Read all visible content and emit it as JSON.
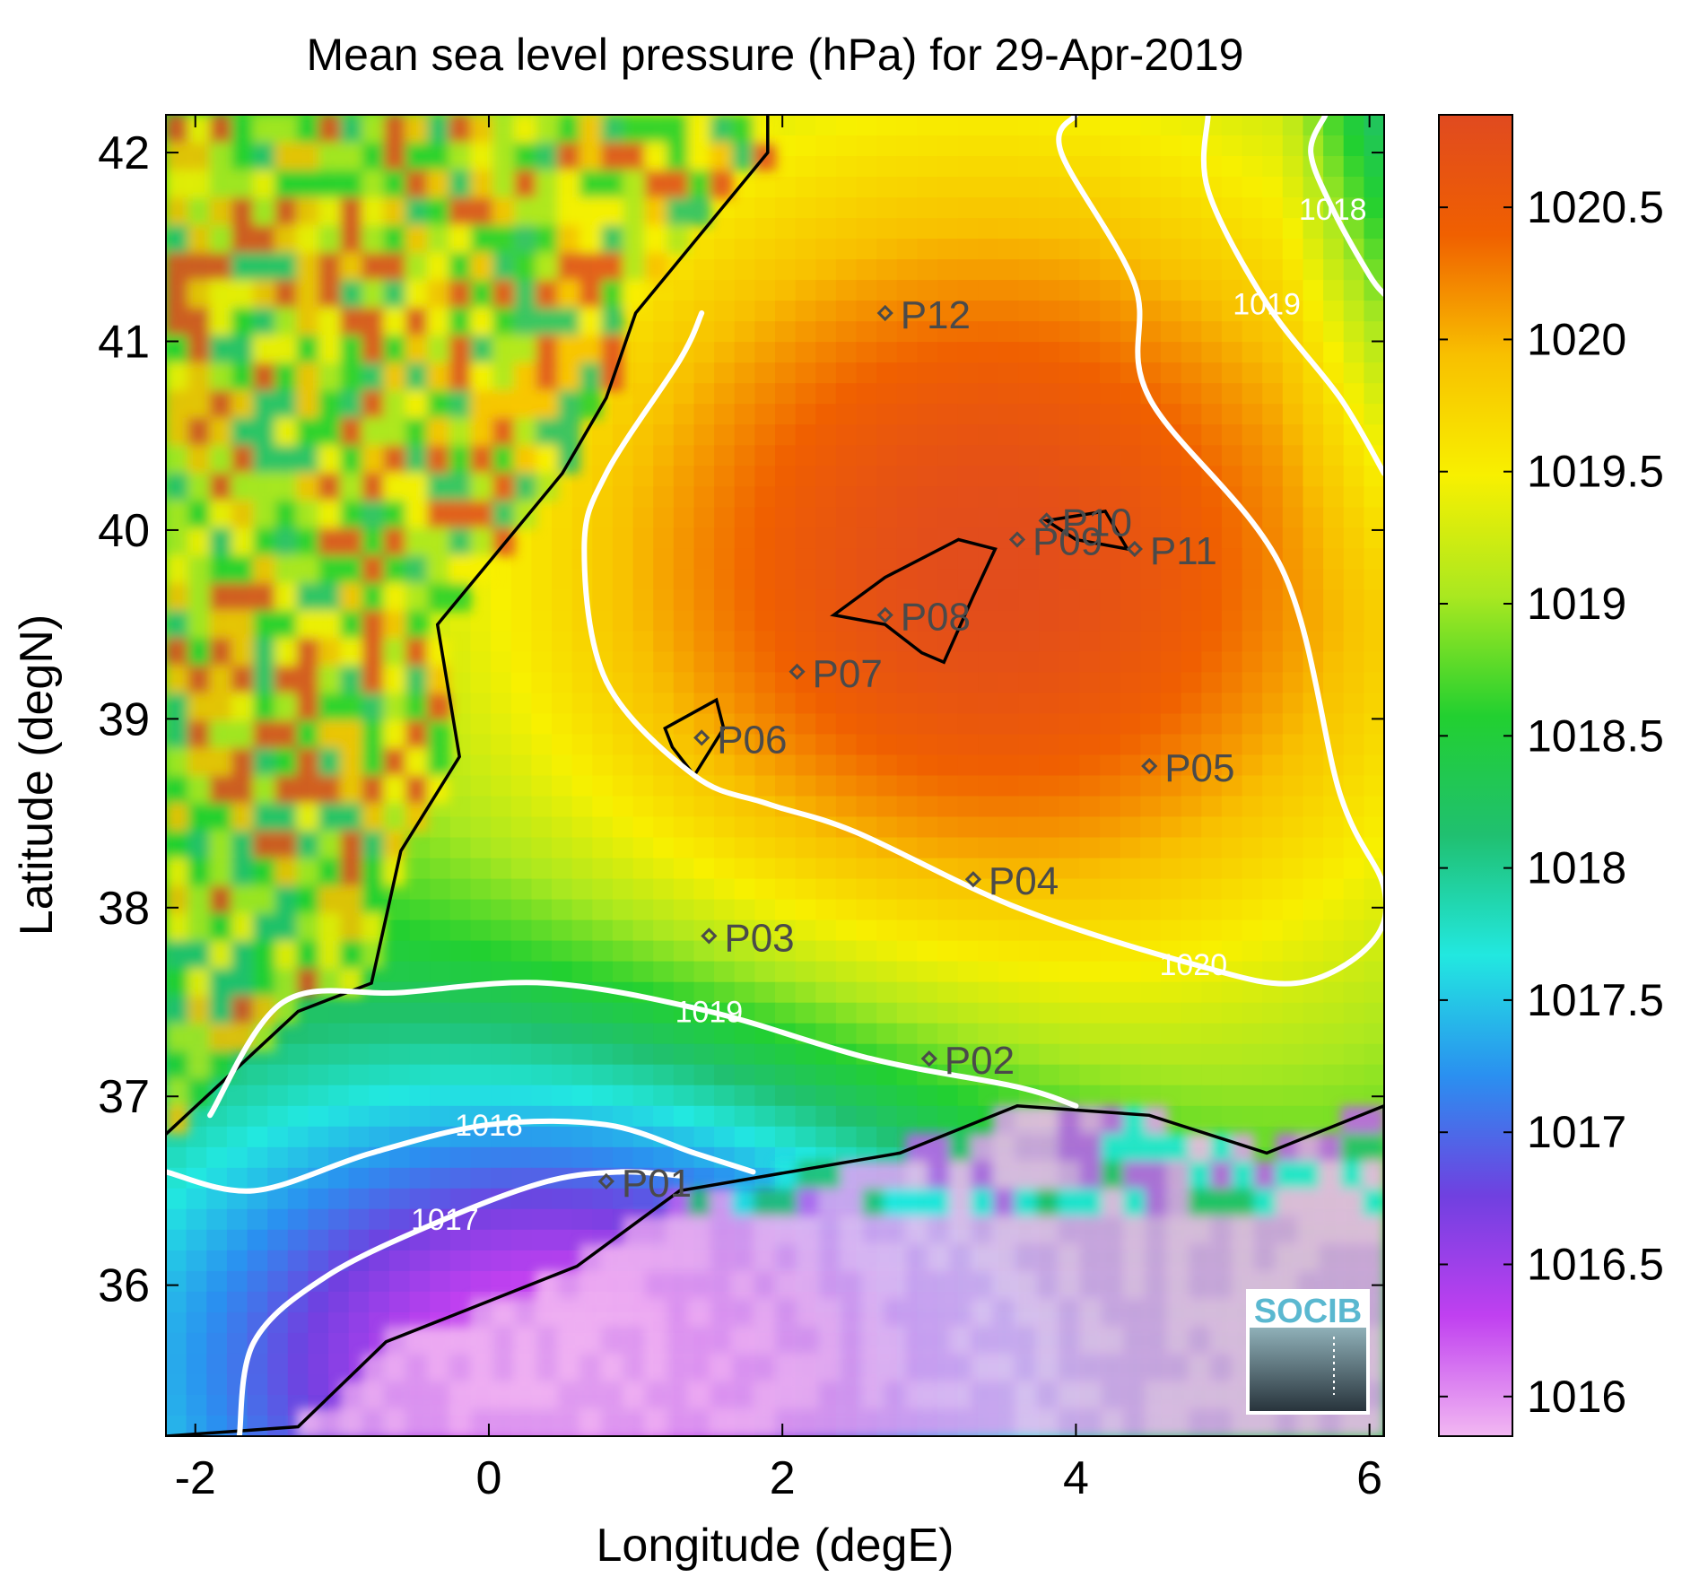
{
  "chart_data": {
    "type": "heatmap",
    "title": "Mean sea level pressure (hPa) for 29-Apr-2019",
    "xlabel": "Longitude (degE)",
    "ylabel": "Latitude (degN)",
    "xlim": [
      -2.2,
      6.1
    ],
    "ylim": [
      35.2,
      42.2
    ],
    "x_ticks": [
      -2,
      0,
      2,
      4,
      6
    ],
    "x_tick_labels": [
      "-2",
      "0",
      "2",
      "4",
      "6"
    ],
    "y_ticks": [
      36,
      37,
      38,
      39,
      40,
      41,
      42
    ],
    "y_tick_labels": [
      "36",
      "37",
      "38",
      "39",
      "40",
      "41",
      "42"
    ],
    "colorbar": {
      "range": [
        1015.85,
        1020.85
      ],
      "ticks": [
        1016,
        1016.5,
        1017,
        1017.5,
        1018,
        1018.5,
        1019,
        1019.5,
        1020,
        1020.5
      ],
      "tick_labels": [
        "1016",
        "1016.5",
        "1017",
        "1017.5",
        "1018",
        "1018.5",
        "1019",
        "1019.5",
        "1020",
        "1020.5"
      ],
      "colormap": [
        "#f2b8f2",
        "#c040f0",
        "#7040e0",
        "#2a90f0",
        "#22e8e0",
        "#20c070",
        "#22d030",
        "#aae820",
        "#f8f000",
        "#f8c000",
        "#f06000",
        "#e04a20"
      ]
    },
    "pressure_field": {
      "high_center": {
        "lon": 3.4,
        "lat": 39.8,
        "value": 1020.8
      },
      "low_center": {
        "lon": 0.6,
        "lat": 35.6,
        "value": 1016.0
      }
    },
    "contours": [
      {
        "level": 1020,
        "label": "1020",
        "points": [
          [
            4.0,
            42.2
          ],
          [
            3.9,
            42.0
          ],
          [
            4.4,
            41.3
          ],
          [
            4.5,
            40.7
          ],
          [
            5.4,
            39.8
          ],
          [
            5.8,
            38.6
          ],
          [
            6.1,
            38.1
          ],
          [
            6.0,
            37.8
          ],
          [
            5.5,
            37.6
          ],
          [
            4.8,
            37.7
          ],
          [
            3.6,
            38.0
          ],
          [
            2.5,
            38.4
          ],
          [
            1.9,
            38.55
          ],
          [
            1.4,
            38.7
          ],
          [
            0.8,
            39.2
          ],
          [
            0.65,
            39.9
          ],
          [
            0.8,
            40.3
          ],
          [
            1.3,
            40.9
          ],
          [
            1.45,
            41.15
          ]
        ],
        "closed": false
      },
      {
        "level": 1019,
        "label": "1019",
        "points": [
          [
            -1.9,
            36.9
          ],
          [
            -1.4,
            37.5
          ],
          [
            -0.6,
            37.55
          ],
          [
            0.4,
            37.6
          ],
          [
            1.5,
            37.45
          ],
          [
            2.6,
            37.2
          ],
          [
            3.6,
            37.05
          ],
          [
            4.0,
            36.95
          ]
        ],
        "closed": false
      },
      {
        "level": 1019,
        "label": "1019",
        "points": [
          [
            4.9,
            42.2
          ],
          [
            4.9,
            41.8
          ],
          [
            5.3,
            41.2
          ],
          [
            5.8,
            40.7
          ],
          [
            6.1,
            40.3
          ]
        ],
        "closed": false
      },
      {
        "level": 1018,
        "label": "1018",
        "points": [
          [
            -2.2,
            36.6
          ],
          [
            -1.6,
            36.5
          ],
          [
            -0.8,
            36.7
          ],
          [
            0.0,
            36.85
          ],
          [
            0.8,
            36.85
          ],
          [
            1.4,
            36.7
          ],
          [
            1.8,
            36.6
          ]
        ],
        "closed": false
      },
      {
        "level": 1018,
        "label": "1018",
        "points": [
          [
            5.7,
            42.2
          ],
          [
            5.6,
            42.0
          ],
          [
            5.75,
            41.7
          ],
          [
            6.0,
            41.35
          ],
          [
            6.1,
            41.25
          ]
        ],
        "closed": false
      },
      {
        "level": 1017,
        "label": "1017",
        "points": [
          [
            -1.7,
            35.2
          ],
          [
            -1.6,
            35.7
          ],
          [
            -1.1,
            36.05
          ],
          [
            -0.3,
            36.35
          ],
          [
            0.4,
            36.55
          ],
          [
            0.9,
            36.6
          ],
          [
            1.3,
            36.58
          ]
        ],
        "closed": false
      }
    ],
    "stations": [
      {
        "name": "P01",
        "lon": 0.8,
        "lat": 36.55
      },
      {
        "name": "P02",
        "lon": 3.0,
        "lat": 37.2
      },
      {
        "name": "P03",
        "lon": 1.5,
        "lat": 37.85
      },
      {
        "name": "P04",
        "lon": 3.3,
        "lat": 38.15
      },
      {
        "name": "P05",
        "lon": 4.5,
        "lat": 38.75
      },
      {
        "name": "P06",
        "lon": 1.45,
        "lat": 38.9
      },
      {
        "name": "P07",
        "lon": 2.1,
        "lat": 39.25
      },
      {
        "name": "P08",
        "lon": 2.7,
        "lat": 39.55
      },
      {
        "name": "P09",
        "lon": 3.6,
        "lat": 39.95
      },
      {
        "name": "P10",
        "lon": 3.8,
        "lat": 40.05
      },
      {
        "name": "P11",
        "lon": 4.4,
        "lat": 39.9
      },
      {
        "name": "P12",
        "lon": 2.7,
        "lat": 41.15
      }
    ],
    "coastline_color": "#000000",
    "contour_color": "#ffffff",
    "logo_text": "SOCIB"
  }
}
